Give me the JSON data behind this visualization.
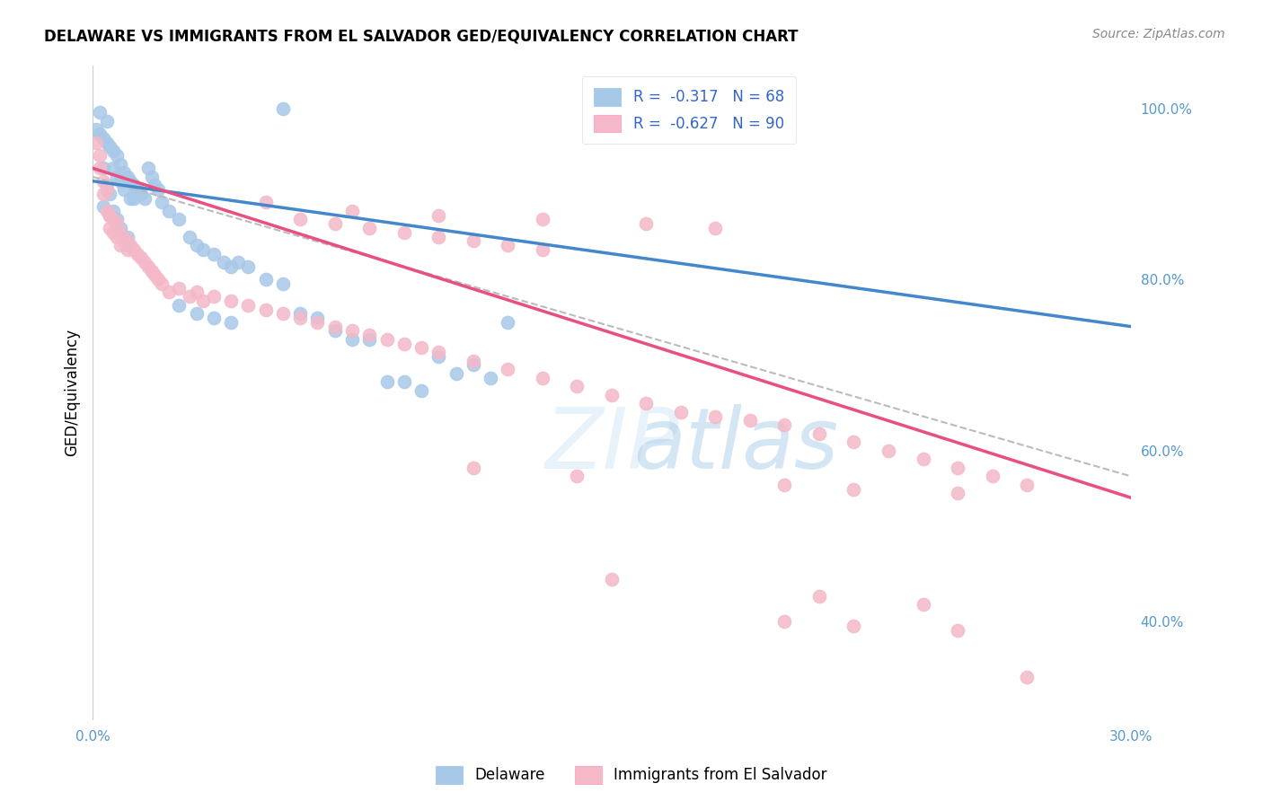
{
  "title": "DELAWARE VS IMMIGRANTS FROM EL SALVADOR GED/EQUIVALENCY CORRELATION CHART",
  "source": "Source: ZipAtlas.com",
  "ylabel": "GED/Equivalency",
  "legend_label1": "Delaware",
  "legend_label2": "Immigrants from El Salvador",
  "blue_scatter_color": "#a8c8e8",
  "pink_scatter_color": "#f4b8c8",
  "blue_line_color": "#4488cc",
  "pink_line_color": "#e85080",
  "dashed_line_color": "#bbbbbb",
  "R1": -0.317,
  "N1": 68,
  "R2": -0.627,
  "N2": 90,
  "xlim": [
    0.0,
    0.3
  ],
  "ylim": [
    0.285,
    1.05
  ],
  "yticks_right": [
    0.4,
    0.6,
    0.8,
    1.0
  ],
  "xticks": [
    0.0,
    0.3
  ],
  "background_color": "#ffffff",
  "grid_color": "#e0e0e0",
  "legend_text_color": "#3366cc",
  "axis_tick_color": "#5599cc",
  "title_fontsize": 12,
  "source_fontsize": 10,
  "legend_fontsize": 12,
  "tick_fontsize": 11,
  "blue_x": [
    0.001,
    0.002,
    0.002,
    0.003,
    0.003,
    0.003,
    0.004,
    0.004,
    0.004,
    0.005,
    0.005,
    0.005,
    0.006,
    0.006,
    0.006,
    0.007,
    0.007,
    0.007,
    0.008,
    0.008,
    0.008,
    0.009,
    0.009,
    0.01,
    0.01,
    0.01,
    0.011,
    0.011,
    0.012,
    0.012,
    0.013,
    0.014,
    0.015,
    0.016,
    0.017,
    0.018,
    0.019,
    0.02,
    0.022,
    0.025,
    0.028,
    0.03,
    0.032,
    0.035,
    0.038,
    0.04,
    0.042,
    0.045,
    0.05,
    0.055,
    0.06,
    0.065,
    0.07,
    0.075,
    0.08,
    0.085,
    0.09,
    0.095,
    0.1,
    0.105,
    0.11,
    0.115,
    0.12,
    0.025,
    0.03,
    0.035,
    0.04,
    0.055
  ],
  "blue_y": [
    0.975,
    0.97,
    0.995,
    0.965,
    0.93,
    0.885,
    0.985,
    0.96,
    0.91,
    0.955,
    0.9,
    0.875,
    0.95,
    0.93,
    0.88,
    0.945,
    0.92,
    0.87,
    0.935,
    0.915,
    0.86,
    0.925,
    0.905,
    0.92,
    0.85,
    0.84,
    0.915,
    0.895,
    0.91,
    0.895,
    0.905,
    0.9,
    0.895,
    0.93,
    0.92,
    0.91,
    0.905,
    0.89,
    0.88,
    0.87,
    0.85,
    0.84,
    0.835,
    0.83,
    0.82,
    0.815,
    0.82,
    0.815,
    0.8,
    0.795,
    0.76,
    0.755,
    0.74,
    0.73,
    0.73,
    0.68,
    0.68,
    0.67,
    0.71,
    0.69,
    0.7,
    0.685,
    0.75,
    0.77,
    0.76,
    0.755,
    0.75,
    1.0
  ],
  "pink_x": [
    0.001,
    0.002,
    0.002,
    0.003,
    0.003,
    0.004,
    0.004,
    0.005,
    0.005,
    0.006,
    0.006,
    0.007,
    0.007,
    0.008,
    0.008,
    0.009,
    0.01,
    0.01,
    0.011,
    0.012,
    0.013,
    0.014,
    0.015,
    0.016,
    0.017,
    0.018,
    0.019,
    0.02,
    0.022,
    0.025,
    0.028,
    0.03,
    0.032,
    0.035,
    0.04,
    0.045,
    0.05,
    0.055,
    0.06,
    0.065,
    0.07,
    0.075,
    0.08,
    0.085,
    0.09,
    0.095,
    0.1,
    0.11,
    0.12,
    0.13,
    0.14,
    0.15,
    0.16,
    0.17,
    0.18,
    0.19,
    0.2,
    0.21,
    0.22,
    0.23,
    0.24,
    0.25,
    0.26,
    0.27,
    0.06,
    0.07,
    0.08,
    0.09,
    0.1,
    0.11,
    0.12,
    0.13,
    0.05,
    0.075,
    0.1,
    0.13,
    0.16,
    0.18,
    0.11,
    0.14,
    0.2,
    0.22,
    0.25,
    0.21,
    0.24,
    0.2,
    0.22,
    0.15,
    0.25,
    0.27
  ],
  "pink_y": [
    0.96,
    0.945,
    0.93,
    0.915,
    0.9,
    0.905,
    0.88,
    0.875,
    0.86,
    0.87,
    0.855,
    0.865,
    0.85,
    0.855,
    0.84,
    0.845,
    0.845,
    0.835,
    0.84,
    0.835,
    0.83,
    0.825,
    0.82,
    0.815,
    0.81,
    0.805,
    0.8,
    0.795,
    0.785,
    0.79,
    0.78,
    0.785,
    0.775,
    0.78,
    0.775,
    0.77,
    0.765,
    0.76,
    0.755,
    0.75,
    0.745,
    0.74,
    0.735,
    0.73,
    0.725,
    0.72,
    0.715,
    0.705,
    0.695,
    0.685,
    0.675,
    0.665,
    0.655,
    0.645,
    0.64,
    0.635,
    0.63,
    0.62,
    0.61,
    0.6,
    0.59,
    0.58,
    0.57,
    0.56,
    0.87,
    0.865,
    0.86,
    0.855,
    0.85,
    0.845,
    0.84,
    0.835,
    0.89,
    0.88,
    0.875,
    0.87,
    0.865,
    0.86,
    0.58,
    0.57,
    0.56,
    0.555,
    0.55,
    0.43,
    0.42,
    0.4,
    0.395,
    0.45,
    0.39,
    0.335
  ]
}
